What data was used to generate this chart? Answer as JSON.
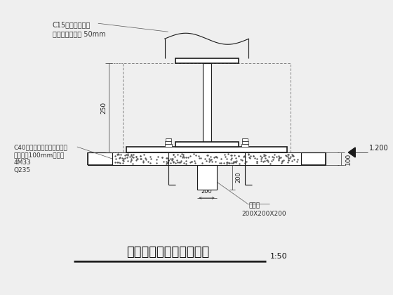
{
  "title": "柱脚包裹及后浇砼大样图",
  "scale": "1:50",
  "bg_color": "#efefef",
  "line_color": "#1a1a1a",
  "annotations": {
    "top_left_1": "C15素混凝土包裹",
    "top_left_2": "保护层厚度大于 50mm",
    "left_mid_1": "C40无收缩细石混凝土找平层",
    "left_mid_2": "找平层厚100mm，后浇",
    "left_mid_3": "4M33",
    "left_mid_4": "Q235",
    "dim_250": "250",
    "dim_200v": "200",
    "dim_200h": "200",
    "dim_100": "100",
    "dim_1200": "1.200",
    "bottom_note_1": "抗剪键",
    "bottom_note_2": "200X200X200"
  }
}
